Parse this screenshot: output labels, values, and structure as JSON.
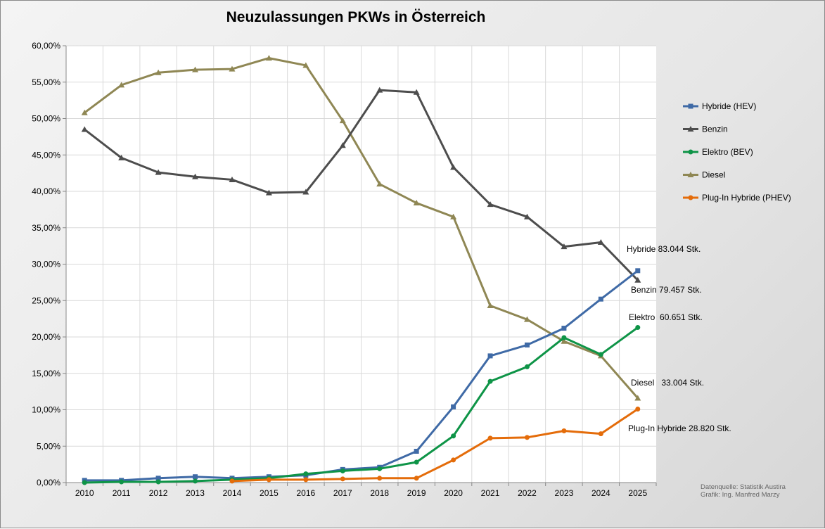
{
  "chart_data": {
    "type": "line",
    "title": "Neuzulassungen PKWs in Österreich",
    "xlabel": "",
    "ylabel": "",
    "categories": [
      "2010",
      "2011",
      "2012",
      "2013",
      "2014",
      "2015",
      "2016",
      "2017",
      "2018",
      "2019",
      "2020",
      "2021",
      "2022",
      "2023",
      "2024",
      "2025"
    ],
    "ylim": [
      0,
      60
    ],
    "yticks": [
      "0,00%",
      "5,00%",
      "10,00%",
      "15,00%",
      "20,00%",
      "25,00%",
      "30,00%",
      "35,00%",
      "40,00%",
      "45,00%",
      "50,00%",
      "55,00%",
      "60,00%"
    ],
    "grid": true,
    "legend_position": "right",
    "series": [
      {
        "name": "Hybride (HEV)",
        "color": "#3f6aa6",
        "marker": "square",
        "values": [
          0.3,
          0.3,
          0.6,
          0.8,
          0.6,
          0.8,
          1.0,
          1.8,
          2.1,
          4.3,
          10.4,
          17.4,
          18.9,
          21.2,
          25.2,
          29.1
        ]
      },
      {
        "name": "Benzin",
        "color": "#4d4d4d",
        "marker": "triangle",
        "values": [
          48.5,
          44.6,
          42.6,
          42.0,
          41.6,
          39.8,
          39.9,
          46.3,
          53.9,
          53.6,
          43.3,
          38.2,
          36.5,
          32.4,
          33.0,
          27.8
        ]
      },
      {
        "name": "Elektro (BEV)",
        "color": "#0e9447",
        "marker": "circle",
        "values": [
          0.0,
          0.1,
          0.1,
          0.2,
          0.4,
          0.6,
          1.2,
          1.6,
          1.9,
          2.8,
          6.4,
          13.9,
          15.9,
          19.9,
          17.6,
          21.3
        ]
      },
      {
        "name": "Diesel",
        "color": "#8f8754",
        "marker": "triangle",
        "values": [
          50.8,
          54.6,
          56.3,
          56.7,
          56.8,
          58.3,
          57.3,
          49.7,
          41.0,
          38.4,
          36.5,
          24.3,
          22.4,
          19.4,
          17.4,
          11.6
        ]
      },
      {
        "name": "Plug-In Hybride (PHEV)",
        "color": "#e46c0a",
        "marker": "circle",
        "values": [
          null,
          null,
          null,
          null,
          0.2,
          0.4,
          0.4,
          0.5,
          0.6,
          0.6,
          3.1,
          6.1,
          6.2,
          7.1,
          6.7,
          10.1
        ]
      }
    ],
    "annotations": [
      "Hybride 83.044 Stk.",
      "Benzin 79.457 Stk.",
      "Elektro  60.651 Stk.",
      "Diesel   33.004 Stk.",
      "Plug-In Hybride 28.820 Stk."
    ],
    "source": [
      "Datenquelle: Statistik Austira",
      "Grafik: Ing. Manfred Marzy"
    ]
  }
}
